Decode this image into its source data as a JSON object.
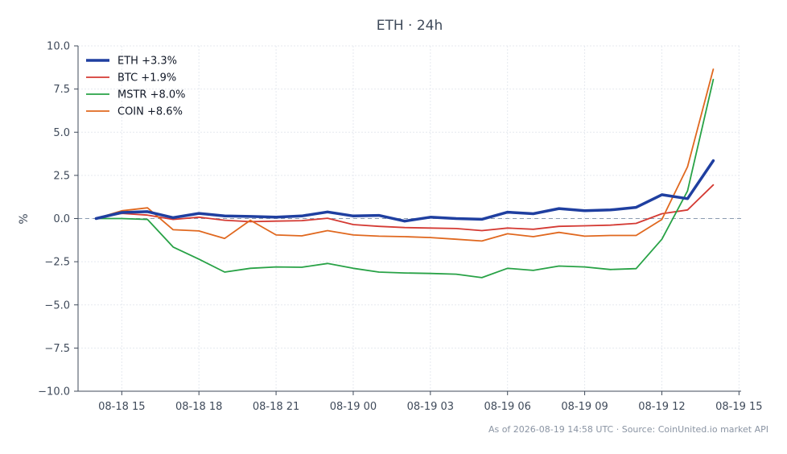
{
  "chart_data": {
    "type": "line",
    "title": "ETH · 24h",
    "ylabel": "%",
    "xlabel": "",
    "ylim": [
      -10.0,
      10.0
    ],
    "yticks": [
      -10.0,
      -7.5,
      -5.0,
      -2.5,
      0.0,
      2.5,
      5.0,
      7.5,
      10.0
    ],
    "ytick_labels": [
      "−10.0",
      "−7.5",
      "−5.0",
      "−2.5",
      "0.0",
      "2.5",
      "5.0",
      "7.5",
      "10.0"
    ],
    "xlim": [
      "2026-08-18 13:18",
      "2026-08-19 15:05"
    ],
    "xticks": [
      "2026-08-18 15:00",
      "2026-08-18 18:00",
      "2026-08-18 21:00",
      "2026-08-19 00:00",
      "2026-08-19 03:00",
      "2026-08-19 06:00",
      "2026-08-19 09:00",
      "2026-08-19 12:00",
      "2026-08-19 15:00"
    ],
    "xtick_labels": [
      "08-18 15",
      "08-18 18",
      "08-18 21",
      "08-19 00",
      "08-19 03",
      "08-19 06",
      "08-19 09",
      "08-19 12",
      "08-19 15"
    ],
    "x": [
      "2026-08-18 14:00",
      "2026-08-18 15:00",
      "2026-08-18 16:00",
      "2026-08-18 17:00",
      "2026-08-18 18:00",
      "2026-08-18 19:00",
      "2026-08-18 20:00",
      "2026-08-18 21:00",
      "2026-08-18 22:00",
      "2026-08-18 23:00",
      "2026-08-19 00:00",
      "2026-08-19 01:00",
      "2026-08-19 02:00",
      "2026-08-19 03:00",
      "2026-08-19 04:00",
      "2026-08-19 05:00",
      "2026-08-19 06:00",
      "2026-08-19 07:00",
      "2026-08-19 08:00",
      "2026-08-19 09:00",
      "2026-08-19 10:00",
      "2026-08-19 11:00",
      "2026-08-19 12:00",
      "2026-08-19 13:00",
      "2026-08-19 14:00"
    ],
    "series": [
      {
        "name": "ETH +3.3%",
        "color": "#1f3fa0",
        "width": 3.5,
        "values": [
          0.0,
          0.35,
          0.4,
          0.05,
          0.3,
          0.15,
          0.12,
          0.08,
          0.15,
          0.38,
          0.15,
          0.18,
          -0.15,
          0.08,
          0.0,
          -0.04,
          0.37,
          0.28,
          0.58,
          0.45,
          0.5,
          0.65,
          1.38,
          1.15,
          3.35
        ]
      },
      {
        "name": "BTC +1.9%",
        "color": "#d43a33",
        "width": 1.8,
        "values": [
          0.0,
          0.3,
          0.2,
          -0.05,
          0.08,
          -0.1,
          -0.18,
          -0.15,
          -0.12,
          0.02,
          -0.35,
          -0.45,
          -0.52,
          -0.55,
          -0.58,
          -0.7,
          -0.55,
          -0.62,
          -0.45,
          -0.42,
          -0.38,
          -0.28,
          0.28,
          0.5,
          1.95
        ]
      },
      {
        "name": "MSTR +8.0%",
        "color": "#28a246",
        "width": 1.8,
        "values": [
          0.0,
          0.0,
          -0.05,
          -1.65,
          -2.35,
          -3.1,
          -2.88,
          -2.8,
          -2.82,
          -2.6,
          -2.88,
          -3.1,
          -3.15,
          -3.18,
          -3.22,
          -3.42,
          -2.88,
          -3.0,
          -2.75,
          -2.8,
          -2.95,
          -2.9,
          -1.2,
          1.6,
          8.05
        ]
      },
      {
        "name": "COIN +8.6%",
        "color": "#e0681f",
        "width": 1.8,
        "values": [
          0.0,
          0.45,
          0.62,
          -0.65,
          -0.72,
          -1.15,
          -0.1,
          -0.95,
          -1.0,
          -0.7,
          -0.95,
          -1.02,
          -1.05,
          -1.1,
          -1.2,
          -1.3,
          -0.88,
          -1.05,
          -0.8,
          -1.02,
          -0.98,
          -0.98,
          -0.05,
          3.0,
          8.65
        ]
      }
    ],
    "legend_position": "top-left",
    "grid": true,
    "zero_line": true,
    "footer": "As of 2026-08-19 14:58 UTC · Source: CoinUnited.io market API"
  }
}
